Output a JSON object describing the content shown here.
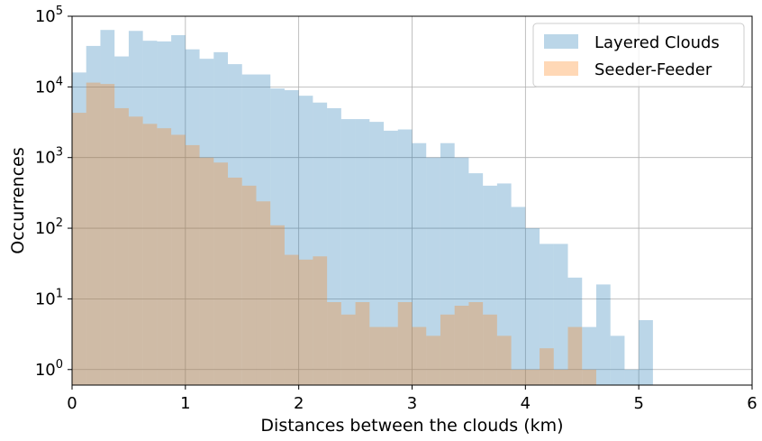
{
  "chart_data": {
    "type": "bar",
    "subtype": "overlaid-histogram",
    "xlabel": "Distances between the clouds (km)",
    "ylabel": "Occurrences",
    "xlim": [
      0,
      6
    ],
    "ylim_log10": [
      -0.22,
      5
    ],
    "yscale": "log",
    "grid": true,
    "legend_position": "top-right",
    "bin_width_km": 0.125,
    "x_tick_labels": [
      "0",
      "1",
      "2",
      "3",
      "4",
      "5",
      "6"
    ],
    "x_ticks": [
      0,
      1,
      2,
      3,
      4,
      5,
      6
    ],
    "y_ticks": [
      {
        "base": "10",
        "exp": "0",
        "value": 1
      },
      {
        "base": "10",
        "exp": "1",
        "value": 10
      },
      {
        "base": "10",
        "exp": "2",
        "value": 100
      },
      {
        "base": "10",
        "exp": "3",
        "value": 1000
      },
      {
        "base": "10",
        "exp": "4",
        "value": 10000
      },
      {
        "base": "10",
        "exp": "5",
        "value": 100000
      }
    ],
    "series": [
      {
        "name": "Layered Clouds",
        "color": "#1f77b4",
        "opacity": 0.3,
        "values": [
          16000,
          38000,
          64000,
          27000,
          62000,
          45000,
          44000,
          54000,
          34000,
          25000,
          31000,
          21000,
          15000,
          15000,
          9500,
          9000,
          7500,
          6000,
          5000,
          3500,
          3500,
          3200,
          2400,
          2500,
          1600,
          1000,
          1600,
          1000,
          600,
          400,
          430,
          200,
          100,
          60,
          60,
          20,
          4,
          16,
          3,
          1,
          5,
          0,
          0,
          0,
          0,
          0,
          0,
          0
        ]
      },
      {
        "name": "Seeder-Feeder",
        "color": "#ff7f0e",
        "opacity": 0.3,
        "values": [
          4300,
          11500,
          11000,
          5000,
          3800,
          3000,
          2600,
          2100,
          1500,
          1000,
          850,
          520,
          400,
          240,
          110,
          42,
          36,
          40,
          9,
          6,
          9,
          4,
          4,
          9,
          4,
          3,
          6,
          8,
          9,
          6,
          3,
          1,
          1,
          2,
          1,
          4,
          1,
          0,
          0,
          0,
          0,
          0,
          0,
          0,
          0,
          0,
          0,
          0
        ]
      }
    ]
  }
}
